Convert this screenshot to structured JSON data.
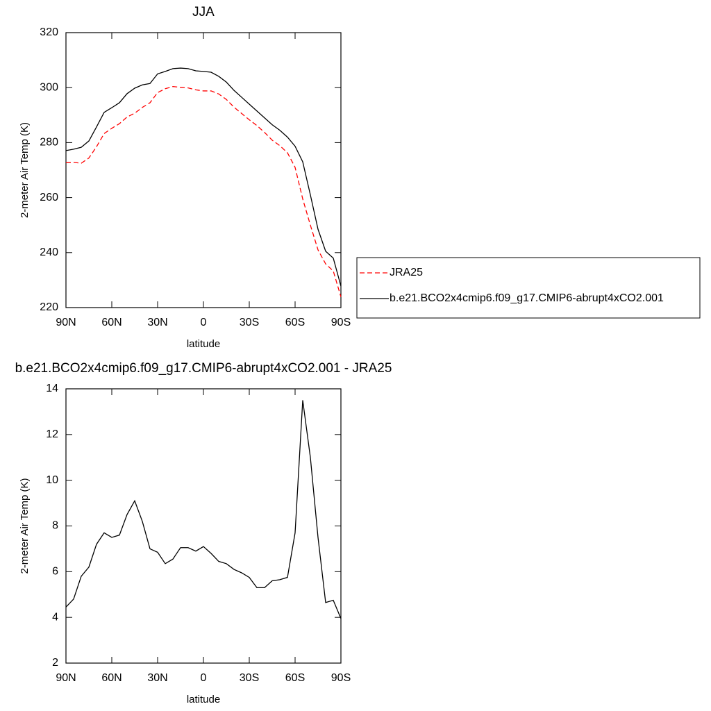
{
  "chart_data": [
    {
      "type": "line",
      "title": "JJA",
      "x_label": "latitude",
      "y_label": "2-meter Air Temp (K)",
      "x": [
        90,
        85,
        80,
        75,
        70,
        65,
        60,
        55,
        50,
        45,
        40,
        35,
        30,
        25,
        20,
        15,
        10,
        5,
        0,
        -5,
        -10,
        -15,
        -20,
        -25,
        -30,
        -35,
        -40,
        -45,
        -50,
        -55,
        -60,
        -65,
        -70,
        -75,
        -80,
        -85,
        -90
      ],
      "series": [
        {
          "name": "JRA25",
          "color": "#ff0000",
          "dash": true,
          "values": [
            272.7,
            272.8,
            272.5,
            274.4,
            278.5,
            283.3,
            285.2,
            286.9,
            289.3,
            290.7,
            292.8,
            294.5,
            298.2,
            299.6,
            300.4,
            300.1,
            299.9,
            299.2,
            298.8,
            298.8,
            297.7,
            295.7,
            292.9,
            290.6,
            288.3,
            286.2,
            283.7,
            280.9,
            278.9,
            276.3,
            271,
            259.5,
            250,
            241,
            235.9,
            233.3,
            223.9
          ]
        },
        {
          "name": "b.e21.BCO2x4cmip6.f09_g17.CMIP6-abrupt4xCO2.001",
          "color": "#000000",
          "dash": false,
          "values": [
            277.1,
            277.6,
            278.3,
            280.6,
            285.7,
            291,
            292.7,
            294.5,
            297.8,
            299.8,
            301,
            301.5,
            305,
            305.9,
            306.9,
            307.1,
            306.9,
            306.1,
            305.9,
            305.6,
            304.1,
            302,
            299,
            296.5,
            294,
            291.5,
            289,
            286.5,
            284.5,
            282,
            278.7,
            273,
            261,
            248.5,
            240.5,
            238,
            227.8
          ]
        }
      ],
      "xlim": [
        90,
        -90
      ],
      "xticks": [
        {
          "value": 90,
          "label": "90N"
        },
        {
          "value": 60,
          "label": "60N"
        },
        {
          "value": 30,
          "label": "30N"
        },
        0,
        {
          "value": -30,
          "label": "30S"
        },
        {
          "value": -60,
          "label": "60S"
        },
        {
          "value": -90,
          "label": "90S"
        }
      ],
      "ylim": [
        220,
        320
      ],
      "yticks": [
        220,
        240,
        260,
        280,
        300,
        320
      ],
      "legend": "right"
    },
    {
      "type": "line",
      "title": "b.e21.BCO2x4cmip6.f09_g17.CMIP6-abrupt4xCO2.001 - JRA25",
      "x_label": "latitude",
      "y_label": "2-meter Air Temp (K)",
      "x": [
        90,
        85,
        80,
        75,
        70,
        65,
        60,
        55,
        50,
        45,
        40,
        35,
        30,
        25,
        20,
        15,
        10,
        5,
        0,
        -5,
        -10,
        -15,
        -20,
        -25,
        -30,
        -35,
        -40,
        -45,
        -50,
        -55,
        -60,
        -65,
        -70,
        -75,
        -80,
        -85,
        -90
      ],
      "series": [
        {
          "color": "#000000",
          "dash": false,
          "values": [
            4.45,
            4.8,
            5.8,
            6.2,
            7.2,
            7.7,
            7.5,
            7.6,
            8.5,
            9.1,
            8.2,
            7.0,
            6.85,
            6.35,
            6.55,
            7.05,
            7.05,
            6.9,
            7.1,
            6.8,
            6.45,
            6.35,
            6.1,
            5.95,
            5.75,
            5.3,
            5.3,
            5.6,
            5.65,
            5.75,
            7.7,
            13.5,
            11.0,
            7.5,
            4.65,
            4.75,
            3.95
          ]
        }
      ],
      "xlim": [
        90,
        -90
      ],
      "xticks": [
        {
          "value": 90,
          "label": "90N"
        },
        {
          "value": 60,
          "label": "60N"
        },
        {
          "value": 30,
          "label": "30N"
        },
        0,
        {
          "value": -30,
          "label": "30S"
        },
        {
          "value": -60,
          "label": "60S"
        },
        {
          "value": -90,
          "label": "90S"
        }
      ],
      "ylim": [
        2,
        14
      ],
      "yticks": [
        2,
        4,
        6,
        8,
        10,
        12,
        14
      ]
    }
  ]
}
